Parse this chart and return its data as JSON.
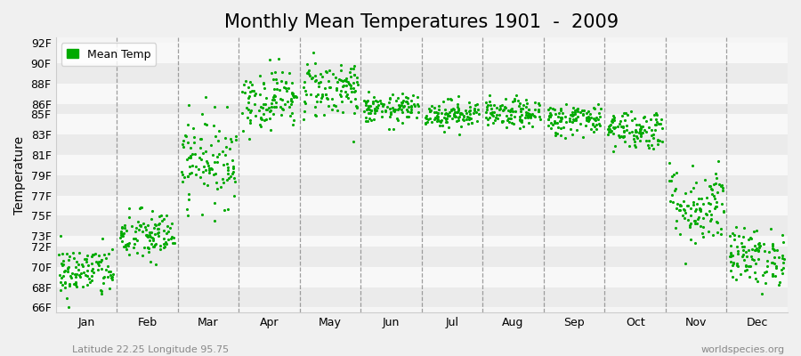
{
  "title": "Monthly Mean Temperatures 1901  -  2009",
  "ylabel": "Temperature",
  "xlabel_months": [
    "Jan",
    "Feb",
    "Mar",
    "Apr",
    "May",
    "Jun",
    "Jul",
    "Aug",
    "Sep",
    "Oct",
    "Nov",
    "Dec"
  ],
  "ytick_labels": [
    "66F",
    "68F",
    "70F",
    "72F",
    "73F",
    "75F",
    "77F",
    "79F",
    "81F",
    "83F",
    "85F",
    "86F",
    "88F",
    "90F",
    "92F"
  ],
  "ytick_values": [
    66,
    68,
    70,
    72,
    73,
    75,
    77,
    79,
    81,
    83,
    85,
    86,
    88,
    90,
    92
  ],
  "ylim": [
    65.5,
    92.5
  ],
  "dot_color": "#00aa00",
  "dot_size": 5,
  "outer_background_color": "#f0f0f0",
  "plot_bg_color": "#f5f5f5",
  "legend_label": "Mean Temp",
  "bottom_left_text": "Latitude 22.25 Longitude 95.75",
  "bottom_right_text": "worldspecies.org",
  "title_fontsize": 15,
  "axis_label_fontsize": 10,
  "tick_fontsize": 9,
  "monthly_means": [
    69.5,
    73.0,
    80.5,
    86.5,
    87.5,
    85.5,
    85.0,
    85.0,
    84.5,
    83.5,
    76.0,
    71.0
  ],
  "monthly_stds": [
    1.3,
    1.3,
    2.2,
    1.5,
    1.5,
    0.7,
    0.7,
    0.7,
    0.8,
    1.0,
    2.0,
    1.4
  ],
  "n_years": 109,
  "seed": 42
}
